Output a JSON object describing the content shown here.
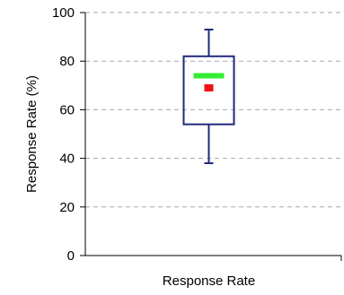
{
  "chart_data": {
    "type": "box",
    "xlabel": "Response Rate",
    "ylabel": "Response Rate (%)",
    "ylim": [
      0,
      100
    ],
    "yticks": [
      0,
      20,
      40,
      60,
      80,
      100
    ],
    "grid": true,
    "boxes": [
      {
        "whisker_low": 38,
        "q1": 54,
        "q3": 82,
        "whisker_high": 93,
        "median": 74,
        "mean": 69
      }
    ],
    "colors": {
      "box_stroke": "#1f2a7a",
      "median": "#33ee33",
      "mean": "#ee1111",
      "grid": "#aaaaaa",
      "axis": "#000000"
    }
  }
}
